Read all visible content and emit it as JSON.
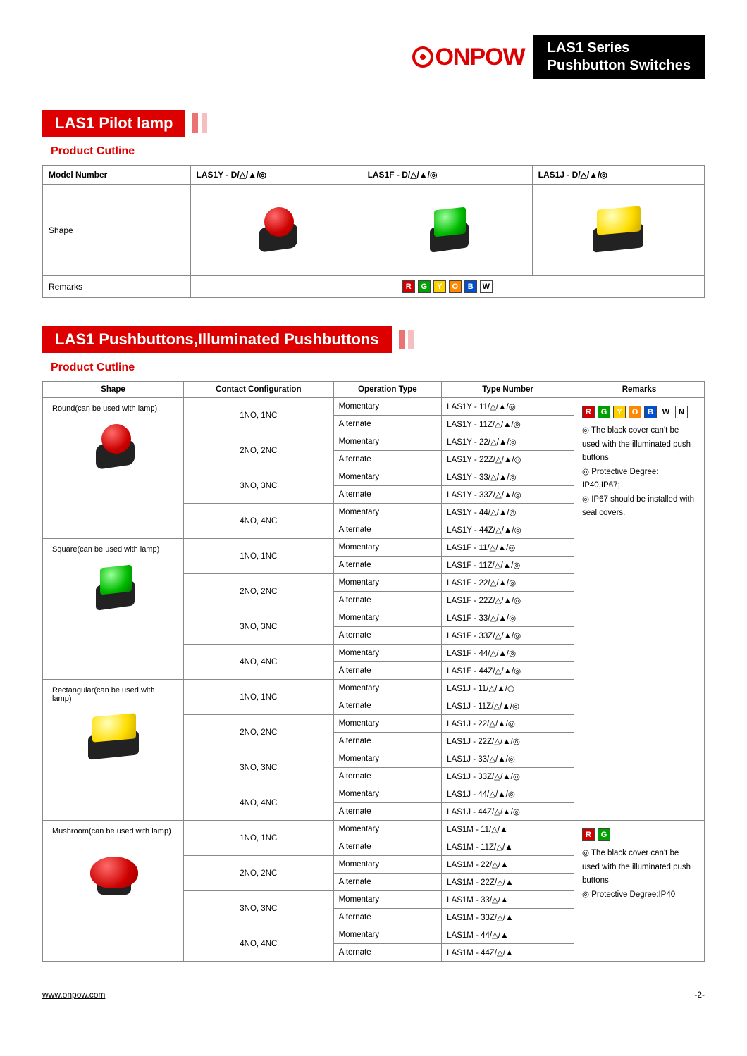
{
  "brand": "ONPOW",
  "header": {
    "line1": "LAS1 Series",
    "line2": "Pushbutton Switches"
  },
  "colors": {
    "accent": "#d00000",
    "black": "#000000",
    "border": "#888888"
  },
  "color_badges": {
    "full6": [
      {
        "code": "R",
        "bg": "#d00000"
      },
      {
        "code": "G",
        "bg": "#00a000"
      },
      {
        "code": "Y",
        "bg": "#ffd000"
      },
      {
        "code": "O",
        "bg": "#ff8800"
      },
      {
        "code": "B",
        "bg": "#0050d0"
      },
      {
        "code": "W",
        "bg": "#ffffff"
      }
    ],
    "full7": [
      {
        "code": "R",
        "bg": "#d00000"
      },
      {
        "code": "G",
        "bg": "#00a000"
      },
      {
        "code": "Y",
        "bg": "#ffd000"
      },
      {
        "code": "O",
        "bg": "#ff8800"
      },
      {
        "code": "B",
        "bg": "#0050d0"
      },
      {
        "code": "W",
        "bg": "#ffffff"
      },
      {
        "code": "N",
        "bg": "#ffffff"
      }
    ],
    "rg": [
      {
        "code": "R",
        "bg": "#d00000"
      },
      {
        "code": "G",
        "bg": "#00a000"
      }
    ]
  },
  "section1": {
    "title": "LAS1 Pilot lamp",
    "sub": "Product Cutline",
    "headers": {
      "model": "Model Number",
      "shape": "Shape",
      "remarks": "Remarks"
    },
    "models": [
      {
        "model": "LAS1Y - D/△/▲/◎",
        "shape": "round",
        "cap": "cap-red"
      },
      {
        "model": "LAS1F - D/△/▲/◎",
        "shape": "square",
        "cap": "cap-green"
      },
      {
        "model": "LAS1J - D/△/▲/◎",
        "shape": "rect",
        "cap": "cap-yellow"
      }
    ]
  },
  "section2": {
    "title": "LAS1 Pushbuttons,Illuminated Pushbuttons",
    "sub": "Product Cutline",
    "columns": [
      "Shape",
      "Contact Configuration",
      "Operation Type",
      "Type Number",
      "Remarks"
    ],
    "contact_configs": [
      "1NO, 1NC",
      "2NO, 2NC",
      "3NO, 3NC",
      "4NO, 4NC"
    ],
    "op_types": [
      "Momentary",
      "Alternate"
    ],
    "groups": [
      {
        "shape_label": "Round(can be used with lamp)",
        "shape": "round",
        "cap": "cap-red",
        "prefix": "LAS1Y",
        "suffix": "/△/▲/◎",
        "remarks_group": 0
      },
      {
        "shape_label": "Square(can be used with lamp)",
        "shape": "square",
        "cap": "cap-green",
        "prefix": "LAS1F",
        "suffix": "/△/▲/◎",
        "remarks_group": 0
      },
      {
        "shape_label": "Rectangular(can be used with lamp)",
        "shape": "rect",
        "cap": "cap-yellow",
        "prefix": "LAS1J",
        "suffix": "/△/▲/◎",
        "remarks_group": 0
      },
      {
        "shape_label": "Mushroom(can be used with lamp)",
        "shape": "mushroom",
        "cap": "cap-red",
        "prefix": "LAS1M",
        "suffix": "/△/▲",
        "remarks_group": 1
      }
    ],
    "type_numbers": [
      "11",
      "22",
      "33",
      "44"
    ],
    "remarks_groups": [
      {
        "badge_set": "full7",
        "lines": [
          "The black cover can't be used with the illuminated push buttons",
          "Protective Degree: IP40,IP67;",
          "IP67 should be installed with seal covers."
        ]
      },
      {
        "badge_set": "rg",
        "lines": [
          "The black cover can't be used with the illuminated push buttons",
          "Protective Degree:IP40"
        ]
      }
    ]
  },
  "footer": {
    "url": "www.onpow.com",
    "page": "-2-"
  }
}
